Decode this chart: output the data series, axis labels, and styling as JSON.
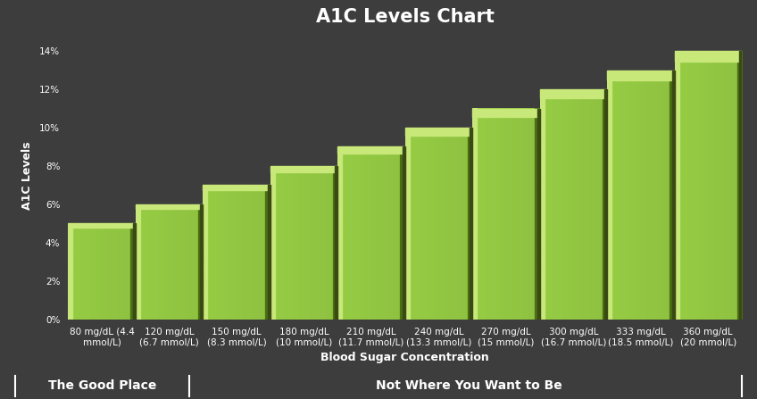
{
  "title": "A1C Levels Chart",
  "xlabel": "Blood Sugar Concentration",
  "ylabel": "A1C Levels",
  "categories": [
    "80 mg/dL (4.4\nmmol/L)",
    "120 mg/dL\n(6.7 mmol/L)",
    "150 mg/dL\n(8.3 mmol/L)",
    "180 mg/dL\n(10 mmol/L)",
    "210 mg/dL\n(11.7 mmol/L)",
    "240 mg/dL\n(13.3 mmol/L)",
    "270 mg/dL\n(15 mmol/L)",
    "300 mg/dL\n(16.7 mmol/L)",
    "333 mg/dL\n(18.5 mmol/L)",
    "360 mg/dL\n(20 mmol/L)"
  ],
  "values": [
    5,
    6,
    7,
    8,
    9,
    10,
    11,
    12,
    13,
    14
  ],
  "bar_color_main": "#96cc44",
  "bar_color_light": "#c8e87a",
  "bar_color_dark": "#4a6e10",
  "bar_color_separator": "#3a4a15",
  "background_color": "#3d3d3d",
  "left_bg_color": "#1a1a1a",
  "plot_bg_color": "#3d3d3d",
  "text_color": "#ffffff",
  "title_fontsize": 15,
  "axis_label_fontsize": 9,
  "tick_fontsize": 7.5,
  "ylim": [
    0,
    15
  ],
  "yticks": [
    0,
    2,
    4,
    6,
    8,
    10,
    12,
    14
  ],
  "ytick_labels": [
    "0%",
    "2%",
    "4%",
    "6%",
    "8%",
    "10%",
    "12%",
    "14%"
  ],
  "footer_left": "The Good Place",
  "footer_right": "Not Where You Want to Be",
  "footer_bg": "#000000",
  "footer_text_color": "#ffffff"
}
